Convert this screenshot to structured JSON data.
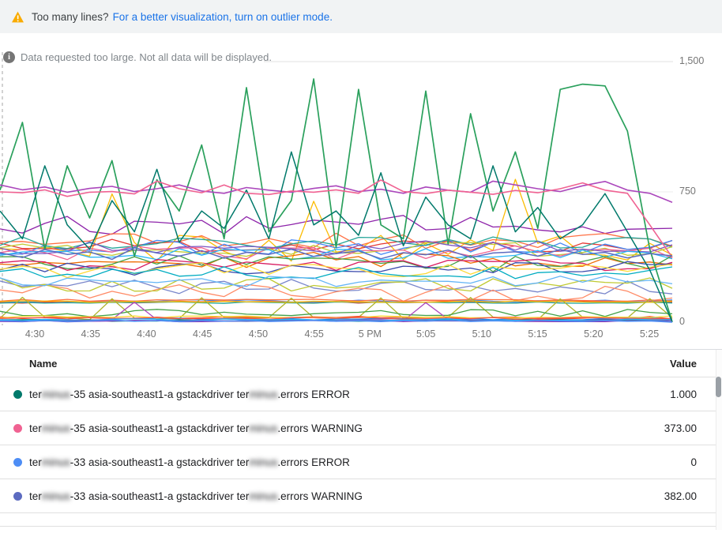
{
  "banner": {
    "warning_text": "Too many lines?",
    "link_text": "For a better visualization, turn on outlier mode.",
    "warning_color": "#f9ab00"
  },
  "notice": {
    "text": "Data requested too large. Not all data will be displayed."
  },
  "chart_data": {
    "type": "line",
    "x_ticks": [
      "4:30",
      "4:35",
      "4:40",
      "4:45",
      "4:50",
      "4:55",
      "5 PM",
      "5:05",
      "5:10",
      "5:15",
      "5:20",
      "5:25"
    ],
    "y_ticks": [
      {
        "label": "1,500",
        "value": 1500
      },
      {
        "label": "750",
        "value": 750
      },
      {
        "label": "0",
        "value": 0
      }
    ],
    "ylim": [
      0,
      1500
    ],
    "grid": "horizontal-only",
    "legend_position": "table-below",
    "series": [
      {
        "name": "terminus-35 asia-southeast1-a gstackdriver terminus.errors ERROR",
        "color": "#00796b",
        "width": 1.5,
        "values": [
          640,
          480,
          900,
          560,
          420,
          700,
          520,
          880,
          460,
          640,
          540,
          760,
          480,
          980,
          560,
          640,
          500,
          860,
          440,
          720,
          560,
          480,
          900,
          520,
          660,
          480,
          560,
          740,
          520,
          300,
          1
        ]
      },
      {
        "name": "terminus-35 asia-southeast1-a gstackdriver terminus.errors WARNING",
        "color": "#f06292",
        "width": 1.6,
        "values": [
          750,
          745,
          762,
          724,
          748,
          752,
          738,
          812,
          768,
          745,
          790,
          742,
          735,
          755,
          748,
          762,
          742,
          818,
          752,
          740,
          760,
          748,
          736,
          758,
          745,
          768,
          802,
          760,
          742,
          560,
          373
        ]
      },
      {
        "name": "terminus-33 asia-southeast1-a gstackdriver terminus.errors ERROR",
        "color": "#4d8df5",
        "width": 1.5,
        "values": [
          8,
          4,
          10,
          3,
          7,
          12,
          5,
          9,
          3,
          8,
          6,
          11,
          4,
          7,
          10,
          5,
          8,
          3,
          9,
          6,
          12,
          4,
          8,
          5,
          10,
          7,
          3,
          9,
          5,
          7,
          0
        ]
      },
      {
        "name": "terminus-33 asia-southeast1-a gstackdriver terminus.errors WARNING",
        "color": "#5c6bc0",
        "width": 1.5,
        "values": [
          400,
          372,
          418,
          390,
          405,
          362,
          428,
          398,
          380,
          412,
          368,
          402,
          390,
          420,
          378,
          395,
          410,
          365,
          400,
          388,
          415,
          372,
          398,
          405,
          380,
          418,
          390,
          402,
          370,
          395,
          382
        ]
      }
    ],
    "unlabeled_series": [
      {
        "color": "#2aa05c",
        "width": 1.7,
        "values": [
          760,
          1150,
          420,
          900,
          600,
          930,
          380,
          820,
          640,
          1020,
          480,
          1350,
          520,
          700,
          1400,
          430,
          1340,
          560,
          480,
          1330,
          450,
          1200,
          640,
          980,
          540,
          1340,
          1370,
          1360,
          1100,
          420,
          1
        ]
      },
      {
        "color": "#ab47bc",
        "width": 1.6,
        "values": [
          790,
          762,
          778,
          748,
          770,
          782,
          752,
          768,
          790,
          755,
          742,
          775,
          760,
          748,
          770,
          785,
          752,
          765,
          742,
          778,
          760,
          748,
          812,
          790,
          768,
          752,
          785,
          810,
          760,
          742,
          690
        ]
      }
    ],
    "background_lines": [
      {
        "color": "#8e24aa",
        "base": 560,
        "amp": 55,
        "seed": 12
      },
      {
        "color": "#fbbc04",
        "base": 430,
        "amp": 80,
        "seed": 14,
        "spike_every": 9,
        "spike_h": 320,
        "spike_phase": 5
      },
      {
        "color": "#ff7043",
        "base": 470,
        "amp": 50,
        "seed": 21
      },
      {
        "color": "#e53935",
        "base": 445,
        "amp": 40,
        "seed": 22
      },
      {
        "color": "#4285f4",
        "base": 430,
        "amp": 45,
        "seed": 23
      },
      {
        "color": "#26a69a",
        "base": 455,
        "amp": 38,
        "seed": 24
      },
      {
        "color": "#c0ca33",
        "base": 420,
        "amp": 45,
        "seed": 25
      },
      {
        "color": "#f06292",
        "base": 400,
        "amp": 40,
        "seed": 26
      },
      {
        "color": "#7e57c2",
        "base": 435,
        "amp": 42,
        "seed": 27
      },
      {
        "color": "#29b6f6",
        "base": 390,
        "amp": 35,
        "seed": 28
      },
      {
        "color": "#ef6c00",
        "base": 360,
        "amp": 45,
        "seed": 29
      },
      {
        "color": "#43a047",
        "base": 340,
        "amp": 50,
        "seed": 30
      },
      {
        "color": "#d81b60",
        "base": 330,
        "amp": 35,
        "seed": 31
      },
      {
        "color": "#3949ab",
        "base": 310,
        "amp": 40,
        "seed": 32
      },
      {
        "color": "#fdd835",
        "base": 300,
        "amp": 45,
        "seed": 33
      },
      {
        "color": "#00acc1",
        "base": 285,
        "amp": 35,
        "seed": 34
      },
      {
        "color": "#7986cb",
        "base": 205,
        "amp": 45,
        "seed": 41
      },
      {
        "color": "#ff8a65",
        "base": 175,
        "amp": 55,
        "seed": 42
      },
      {
        "color": "#c0ca33",
        "base": 215,
        "amp": 40,
        "seed": 43
      },
      {
        "color": "#64b5f6",
        "base": 235,
        "amp": 30,
        "seed": 44
      },
      {
        "color": "#4285f4",
        "base": 122,
        "amp": 7,
        "seed": 51
      },
      {
        "color": "#e53935",
        "base": 116,
        "amp": 6,
        "seed": 52
      },
      {
        "color": "#ff7043",
        "base": 126,
        "amp": 6,
        "seed": 53
      },
      {
        "color": "#26a69a",
        "base": 112,
        "amp": 5,
        "seed": 54
      },
      {
        "color": "#fbbc04",
        "base": 119,
        "amp": 5,
        "seed": 55
      },
      {
        "color": "#afb42b",
        "base": 22,
        "amp": 8,
        "seed": 61,
        "spike_every": 4,
        "spike_h": 118,
        "spike_phase": 1
      },
      {
        "color": "#43a047",
        "base": 52,
        "amp": 22,
        "seed": 62
      },
      {
        "color": "#ab47bc",
        "base": 12,
        "amp": 5,
        "seed": 63,
        "spike_every": 13,
        "spike_h": 105,
        "spike_phase": 6
      },
      {
        "color": "#f4511e",
        "base": 26,
        "amp": 8,
        "seed": 71
      },
      {
        "color": "#1e88e5",
        "base": 18,
        "amp": 7,
        "seed": 72
      },
      {
        "color": "#00897b",
        "base": 10,
        "amp": 5,
        "seed": 73
      },
      {
        "color": "#fdd835",
        "base": 30,
        "amp": 7,
        "seed": 74
      },
      {
        "color": "#8e24aa",
        "base": 6,
        "amp": 4,
        "seed": 75
      },
      {
        "color": "#ef5350",
        "base": 22,
        "amp": 6,
        "seed": 76
      },
      {
        "color": "#29b6f6",
        "base": 14,
        "amp": 6,
        "seed": 77
      },
      {
        "color": "#5c6bc0",
        "base": 8,
        "amp": 4,
        "seed": 78
      }
    ]
  },
  "table": {
    "headers": {
      "name": "Name",
      "value": "Value"
    },
    "rows": [
      {
        "color": "#00796b",
        "prefix": "ter",
        "blur1": "minus",
        "mid": "-35 asia-southeast1-a gstackdriver ter",
        "blur2": "minus",
        "suffix": ".errors ERROR",
        "value": "1.000"
      },
      {
        "color": "#f06292",
        "prefix": "ter",
        "blur1": "minus",
        "mid": "-35 asia-southeast1-a gstackdriver ter",
        "blur2": "minus",
        "suffix": ".errors WARNING",
        "value": "373.00"
      },
      {
        "color": "#4d8df5",
        "prefix": "ter",
        "blur1": "minus",
        "mid": "-33 asia-southeast1-a gstackdriver ter",
        "blur2": "minus",
        "suffix": ".errors ERROR",
        "value": "0"
      },
      {
        "color": "#5c6bc0",
        "prefix": "ter",
        "blur1": "minus",
        "mid": "-33 asia-southeast1-a gstackdriver ter",
        "blur2": "minus",
        "suffix": ".errors WARNING",
        "value": "382.00"
      }
    ]
  }
}
